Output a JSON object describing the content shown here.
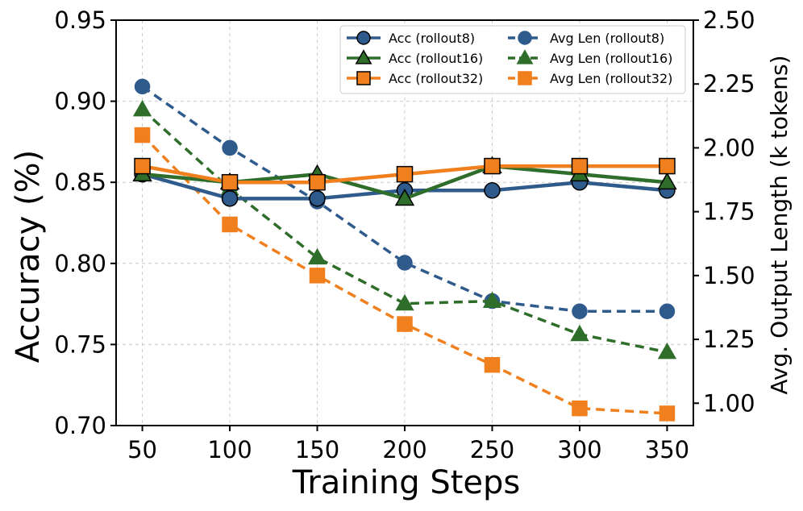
{
  "chart_data": {
    "type": "line",
    "xlabel": "Training Steps",
    "ylabel": "Accuracy (%)",
    "y2label": "Avg. Output Length (k tokens)",
    "x": [
      50,
      100,
      150,
      200,
      250,
      300,
      350
    ],
    "xlim": [
      35,
      365
    ],
    "ylim": [
      0.7,
      0.95
    ],
    "y2lim": [
      0.9125,
      2.5
    ],
    "xticks": [
      "50",
      "100",
      "150",
      "200",
      "250",
      "300",
      "350"
    ],
    "yticks": [
      "0.70",
      "0.75",
      "0.80",
      "0.85",
      "0.90",
      "0.95"
    ],
    "y2ticks": [
      "1.00",
      "1.25",
      "1.50",
      "1.75",
      "2.00",
      "2.25",
      "2.50"
    ],
    "grid": true,
    "legend_position": "top-right",
    "series": [
      {
        "name": "Acc (rollout8)",
        "axis": "left",
        "color": "#2e5a8c",
        "marker": "circle",
        "style": "solid",
        "values": [
          0.855,
          0.84,
          0.84,
          0.845,
          0.845,
          0.85,
          0.845
        ]
      },
      {
        "name": "Acc (rollout16)",
        "axis": "left",
        "color": "#2e6e2a",
        "marker": "triangle",
        "style": "solid",
        "values": [
          0.855,
          0.85,
          0.855,
          0.84,
          0.86,
          0.855,
          0.85
        ]
      },
      {
        "name": "Acc (rollout32)",
        "axis": "left",
        "color": "#f07f1e",
        "marker": "square",
        "style": "solid",
        "values": [
          0.86,
          0.85,
          0.85,
          0.855,
          0.86,
          0.86,
          0.86
        ]
      },
      {
        "name": "Avg Len (rollout8)",
        "axis": "right",
        "color": "#2e5a8c",
        "marker": "circle",
        "style": "dashed",
        "values": [
          2.24,
          2.0,
          1.79,
          1.55,
          1.4,
          1.36,
          1.36
        ]
      },
      {
        "name": "Avg Len (rollout16)",
        "axis": "right",
        "color": "#2e6e2a",
        "marker": "triangle",
        "style": "dashed",
        "values": [
          2.15,
          1.84,
          1.57,
          1.39,
          1.4,
          1.27,
          1.2
        ]
      },
      {
        "name": "Avg Len (rollout32)",
        "axis": "right",
        "color": "#f07f1e",
        "marker": "square",
        "style": "dashed",
        "values": [
          2.05,
          1.7,
          1.5,
          1.31,
          1.15,
          0.98,
          0.96
        ]
      }
    ]
  }
}
